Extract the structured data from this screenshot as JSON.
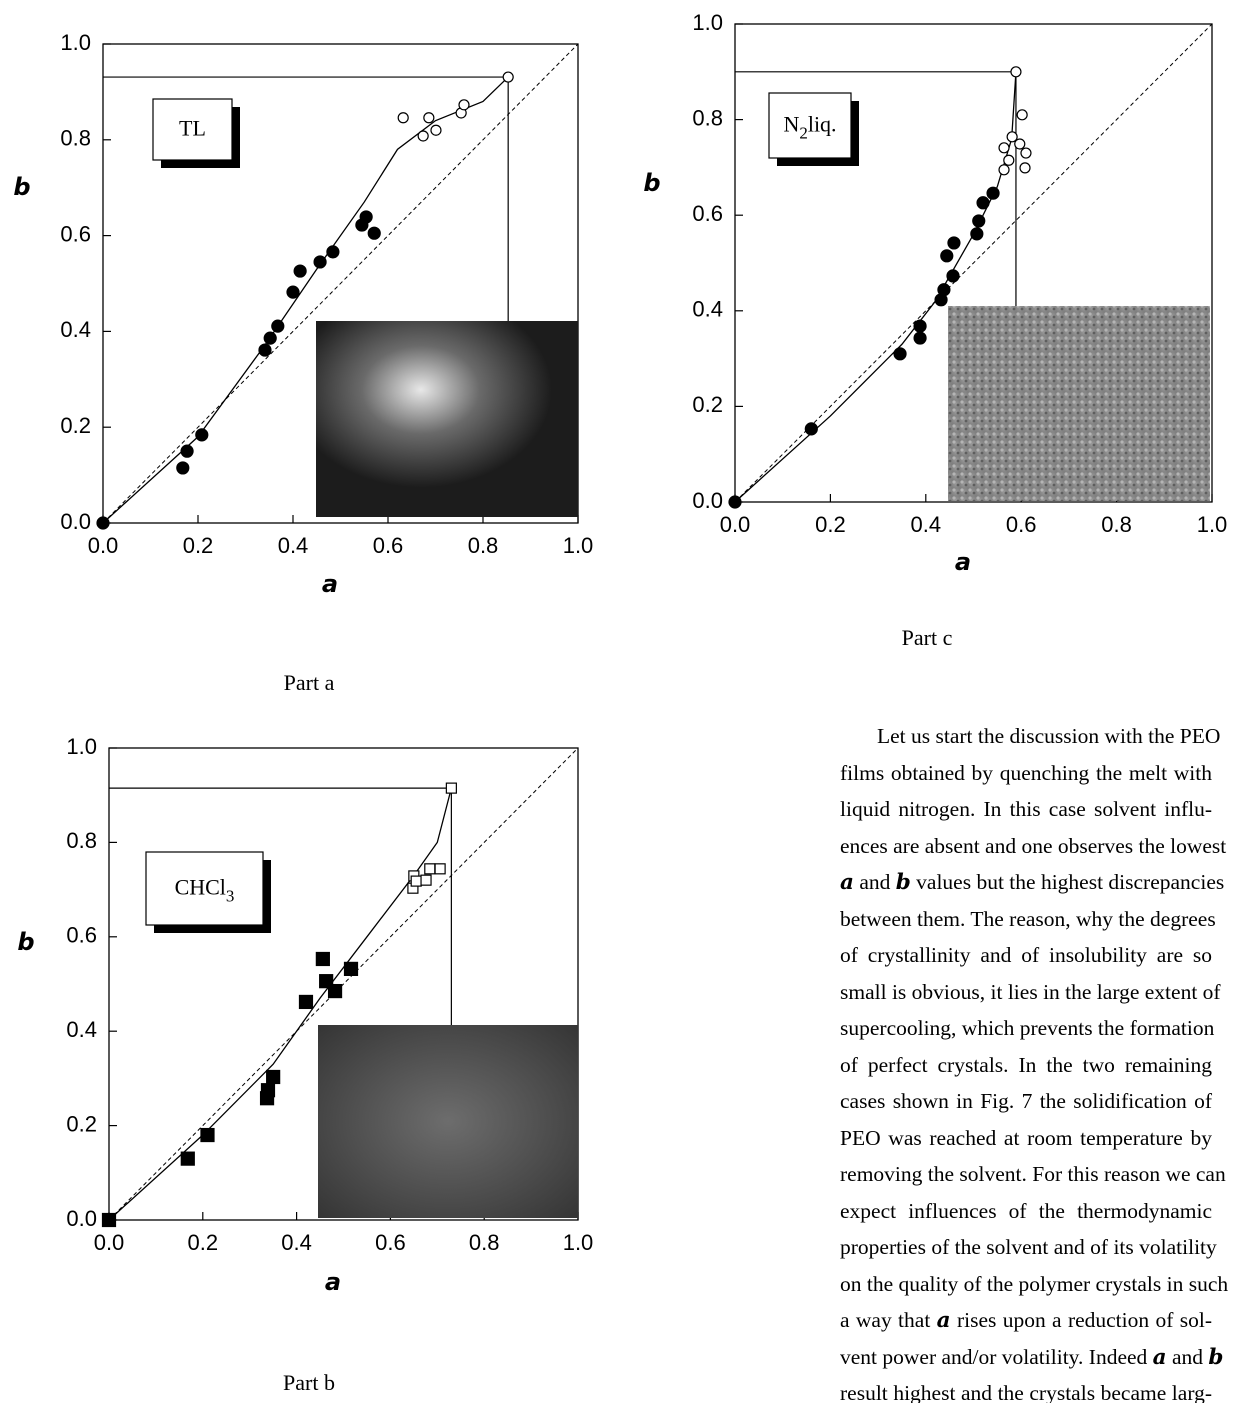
{
  "chart_data": [
    {
      "type": "scatter",
      "label_parts": [
        "TL"
      ],
      "caption": "Part a",
      "xlabel": "a",
      "ylabel": "b",
      "xlim": [
        0,
        1
      ],
      "ylim": [
        0,
        1
      ],
      "diagonal": true,
      "xticks": [
        {
          "value": 0,
          "label": "0.0"
        },
        {
          "value": 0.2,
          "label": "0.2"
        },
        {
          "value": 0.4,
          "label": "0.4"
        },
        {
          "value": 0.6,
          "label": "0.6"
        },
        {
          "value": 0.8,
          "label": "0.8"
        },
        {
          "value": 1,
          "label": "1.0"
        }
      ],
      "yticks": [
        {
          "value": 0,
          "label": "0.0"
        },
        {
          "value": 0.2,
          "label": "0.2"
        },
        {
          "value": 0.4,
          "label": "0.4"
        },
        {
          "value": 0.6,
          "label": "0.6"
        },
        {
          "value": 0.8,
          "label": "0.8"
        },
        {
          "value": 1,
          "label": "1.0"
        }
      ],
      "series": [
        {
          "marker": "filled-circle",
          "color": "#000000",
          "x": [
            0,
            0.168,
            0.177,
            0.208,
            0.341,
            0.352,
            0.368,
            0.4,
            0.415,
            0.457,
            0.484,
            0.545,
            0.554,
            0.571
          ],
          "y": [
            0,
            0.115,
            0.15,
            0.184,
            0.361,
            0.386,
            0.411,
            0.482,
            0.526,
            0.545,
            0.566,
            0.622,
            0.639,
            0.605
          ]
        },
        {
          "marker": "open-circle",
          "color": "#000000",
          "x": [
            0.632,
            0.674,
            0.686,
            0.701,
            0.754,
            0.76,
            0.853
          ],
          "y": [
            0.846,
            0.808,
            0.846,
            0.82,
            0.856,
            0.873,
            0.931
          ]
        }
      ],
      "fit_curve": {
        "x": [
          0,
          0.2,
          0.34,
          0.45,
          0.55,
          0.62,
          0.7,
          0.8,
          0.853
        ],
        "y": [
          0,
          0.18,
          0.37,
          0.53,
          0.67,
          0.78,
          0.84,
          0.88,
          0.931
        ]
      }
    },
    {
      "type": "scatter",
      "label_parts": [
        "N",
        "2",
        "liq."
      ],
      "caption": "Part c",
      "xlabel": "a",
      "ylabel": "b",
      "xlim": [
        0,
        1
      ],
      "ylim": [
        0,
        1
      ],
      "diagonal": true,
      "xticks": [
        {
          "value": 0,
          "label": "0.0"
        },
        {
          "value": 0.2,
          "label": "0.2"
        },
        {
          "value": 0.4,
          "label": "0.4"
        },
        {
          "value": 0.6,
          "label": "0.6"
        },
        {
          "value": 0.8,
          "label": "0.8"
        },
        {
          "value": 1,
          "label": "1.0"
        }
      ],
      "yticks": [
        {
          "value": 0,
          "label": "0.0"
        },
        {
          "value": 0.2,
          "label": "0.2"
        },
        {
          "value": 0.4,
          "label": "0.4"
        },
        {
          "value": 0.6,
          "label": "0.6"
        },
        {
          "value": 0.8,
          "label": "0.8"
        },
        {
          "value": 1,
          "label": "1.0"
        }
      ],
      "series": [
        {
          "marker": "filled-circle",
          "color": "#000000",
          "x": [
            0,
            0.16,
            0.346,
            0.388,
            0.388,
            0.432,
            0.438,
            0.444,
            0.459,
            0.457,
            0.507,
            0.511,
            0.52,
            0.541
          ],
          "y": [
            0,
            0.153,
            0.31,
            0.343,
            0.368,
            0.423,
            0.444,
            0.515,
            0.542,
            0.473,
            0.561,
            0.588,
            0.626,
            0.646
          ]
        },
        {
          "marker": "open-circle",
          "color": "#000000",
          "x": [
            0.602,
            0.581,
            0.564,
            0.564,
            0.574,
            0.597,
            0.61,
            0.608,
            0.589
          ],
          "y": [
            0.81,
            0.764,
            0.741,
            0.695,
            0.715,
            0.749,
            0.73,
            0.699,
            0.9
          ]
        }
      ],
      "fit_curve": {
        "x": [
          0,
          0.2,
          0.35,
          0.42,
          0.5,
          0.55,
          0.58,
          0.589
        ],
        "y": [
          0,
          0.18,
          0.33,
          0.42,
          0.56,
          0.66,
          0.76,
          0.9
        ]
      }
    },
    {
      "type": "scatter",
      "label_parts": [
        "CHCl",
        "3"
      ],
      "caption": "Part b",
      "xlabel": "a",
      "ylabel": "b",
      "xlim": [
        0,
        1
      ],
      "ylim": [
        0,
        1
      ],
      "diagonal": true,
      "xticks": [
        {
          "value": 0,
          "label": "0.0"
        },
        {
          "value": 0.2,
          "label": "0.2"
        },
        {
          "value": 0.4,
          "label": "0.4"
        },
        {
          "value": 0.6,
          "label": "0.6"
        },
        {
          "value": 0.8,
          "label": "0.8"
        },
        {
          "value": 1,
          "label": "1.0"
        }
      ],
      "yticks": [
        {
          "value": 0,
          "label": "0.0"
        },
        {
          "value": 0.2,
          "label": "0.2"
        },
        {
          "value": 0.4,
          "label": "0.4"
        },
        {
          "value": 0.6,
          "label": "0.6"
        },
        {
          "value": 0.8,
          "label": "0.8"
        },
        {
          "value": 1,
          "label": "1.0"
        }
      ],
      "series": [
        {
          "marker": "filled-square",
          "color": "#000000",
          "x": [
            0,
            0.168,
            0.21,
            0.337,
            0.339,
            0.35,
            0.42,
            0.456,
            0.463,
            0.482,
            0.516
          ],
          "y": [
            0,
            0.13,
            0.18,
            0.258,
            0.275,
            0.303,
            0.462,
            0.553,
            0.506,
            0.485,
            0.532
          ]
        },
        {
          "marker": "open-square",
          "color": "#000000",
          "x": [
            0.648,
            0.65,
            0.655,
            0.676,
            0.684,
            0.706,
            0.73
          ],
          "y": [
            0.703,
            0.729,
            0.718,
            0.72,
            0.744,
            0.744,
            0.915
          ]
        }
      ],
      "fit_curve": {
        "x": [
          0,
          0.2,
          0.35,
          0.45,
          0.55,
          0.65,
          0.7,
          0.73
        ],
        "y": [
          0,
          0.18,
          0.33,
          0.47,
          0.6,
          0.73,
          0.8,
          0.915
        ]
      }
    }
  ],
  "text": {
    "lines": [
      [
        "Let us start the discussion with the PEO"
      ],
      [
        "films obtained by quenching the melt with"
      ],
      [
        "liquid nitrogen. In this case solvent influ-"
      ],
      [
        "ences are absent and one observes the lowest"
      ],
      [
        {
          "symbol": "a"
        },
        " and ",
        {
          "symbol": "b"
        },
        " values but the highest discrepancies"
      ],
      [
        "between them. The reason, why the degrees"
      ],
      [
        "of crystallinity and of insolubility are so"
      ],
      [
        "small is obvious, it lies in the large extent of"
      ],
      [
        "supercooling, which prevents the formation"
      ],
      [
        "of perfect crystals. In the two remaining"
      ],
      [
        "cases shown in Fig. 7 the solidification of"
      ],
      [
        "PEO was reached at room temperature by"
      ],
      [
        "removing the solvent. For this reason we can"
      ],
      [
        "expect influences of the thermodynamic"
      ],
      [
        "properties of the solvent and of its volatility"
      ],
      [
        "on the quality of the polymer crystals in such"
      ],
      [
        "a way that ",
        {
          "symbol": "a"
        },
        " rises upon a reduction of sol-"
      ],
      [
        "vent power and/or volatility. Indeed ",
        {
          "symbol": "a"
        },
        " and ",
        {
          "symbol": "b"
        }
      ],
      [
        "result highest and the crystals became larg-"
      ]
    ]
  }
}
